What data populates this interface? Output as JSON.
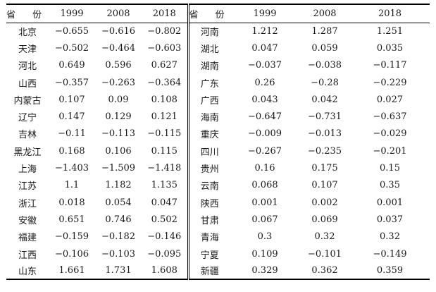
{
  "header": {
    "province_label": "省 份",
    "years": [
      "1999",
      "2008",
      "2018"
    ]
  },
  "left_rows": [
    {
      "province": "北京",
      "v1999": "−0.655",
      "v2008": "−0.616",
      "v2018": "−0.802"
    },
    {
      "province": "天津",
      "v1999": "−0.502",
      "v2008": "−0.464",
      "v2018": "−0.603"
    },
    {
      "province": "河北",
      "v1999": "0.649",
      "v2008": "0.596",
      "v2018": "0.627"
    },
    {
      "province": "山西",
      "v1999": "−0.357",
      "v2008": "−0.263",
      "v2018": "−0.364"
    },
    {
      "province": "内蒙古",
      "v1999": "0.107",
      "v2008": "0.09",
      "v2018": "0.108"
    },
    {
      "province": "辽宁",
      "v1999": "0.147",
      "v2008": "0.129",
      "v2018": "0.121"
    },
    {
      "province": "吉林",
      "v1999": "−0.11",
      "v2008": "−0.113",
      "v2018": "−0.115"
    },
    {
      "province": "黑龙江",
      "v1999": "0.168",
      "v2008": "0.106",
      "v2018": "0.115"
    },
    {
      "province": "上海",
      "v1999": "−1.403",
      "v2008": "−1.509",
      "v2018": "−1.418"
    },
    {
      "province": "江苏",
      "v1999": "1.1",
      "v2008": "1.182",
      "v2018": "1.135"
    },
    {
      "province": "浙江",
      "v1999": "0.018",
      "v2008": "0.054",
      "v2018": "0.047"
    },
    {
      "province": "安徽",
      "v1999": "0.651",
      "v2008": "0.746",
      "v2018": "0.502"
    },
    {
      "province": "福建",
      "v1999": "−0.159",
      "v2008": "−0.182",
      "v2018": "−0.146"
    },
    {
      "province": "江西",
      "v1999": "−0.106",
      "v2008": "−0.103",
      "v2018": "−0.095"
    },
    {
      "province": "山东",
      "v1999": "1.661",
      "v2008": "1.731",
      "v2018": "1.608"
    }
  ],
  "right_rows": [
    {
      "province": "河南",
      "v1999": "1.212",
      "v2008": "1.287",
      "v2018": "1.251"
    },
    {
      "province": "湖北",
      "v1999": "0.047",
      "v2008": "0.059",
      "v2018": "0.035"
    },
    {
      "province": "湖南",
      "v1999": "−0.037",
      "v2008": "−0.038",
      "v2018": "−0.117"
    },
    {
      "province": "广东",
      "v1999": "0.26",
      "v2008": "−0.28",
      "v2018": "−0.229"
    },
    {
      "province": "广西",
      "v1999": "0.043",
      "v2008": "0.042",
      "v2018": "0.027"
    },
    {
      "province": "海南",
      "v1999": "−0.647",
      "v2008": "−0.731",
      "v2018": "−0.637"
    },
    {
      "province": "重庆",
      "v1999": "−0.009",
      "v2008": "−0.013",
      "v2018": "−0.029"
    },
    {
      "province": "四川",
      "v1999": "−0.267",
      "v2008": "−0.235",
      "v2018": "−0.201"
    },
    {
      "province": "贵州",
      "v1999": "0.16",
      "v2008": "0.175",
      "v2018": "0.15"
    },
    {
      "province": "云南",
      "v1999": "0.068",
      "v2008": "0.107",
      "v2018": "0.35"
    },
    {
      "province": "陕西",
      "v1999": "0.001",
      "v2008": "0.002",
      "v2018": "0.001"
    },
    {
      "province": "甘肃",
      "v1999": "0.067",
      "v2008": "0.069",
      "v2018": "0.037"
    },
    {
      "province": "青海",
      "v1999": "0.3",
      "v2008": "0.32",
      "v2018": "0.32"
    },
    {
      "province": "宁夏",
      "v1999": "0.109",
      "v2008": "−0.101",
      "v2018": "−0.149"
    },
    {
      "province": "新疆",
      "v1999": "0.329",
      "v2008": "0.362",
      "v2018": "0.359"
    }
  ]
}
